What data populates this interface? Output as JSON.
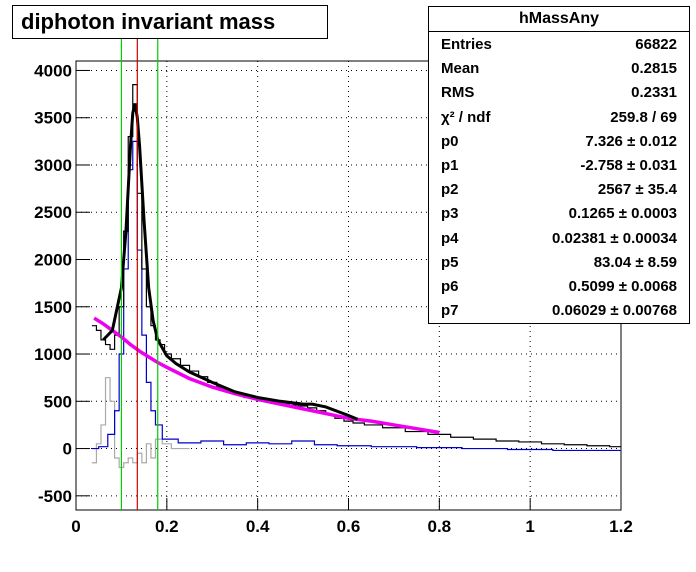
{
  "title": "diphoton invariant mass",
  "stats": {
    "name": "hMassAny",
    "rows": [
      {
        "label": "Entries",
        "value": "66822"
      },
      {
        "label": "Mean",
        "value": "0.2815"
      },
      {
        "label": "RMS",
        "value": "0.2331"
      },
      {
        "label": "χ² / ndf",
        "value": "259.8 / 69"
      },
      {
        "label": "p0",
        "value": "7.326 ± 0.012"
      },
      {
        "label": "p1",
        "value": "-2.758 ± 0.031"
      },
      {
        "label": "p2",
        "value": "2567 ± 35.4"
      },
      {
        "label": "p3",
        "value": "0.1265 ± 0.0003"
      },
      {
        "label": "p4",
        "value": "0.02381 ± 0.00034"
      },
      {
        "label": "p5",
        "value": "83.04 ± 8.59"
      },
      {
        "label": "p6",
        "value": "0.5099 ± 0.0068"
      },
      {
        "label": "p7",
        "value": "0.06029 ± 0.00768"
      }
    ]
  },
  "chart_data": {
    "type": "line",
    "title": "diphoton invariant mass",
    "xlim": [
      0,
      1.2
    ],
    "ylim": [
      -650,
      4100
    ],
    "xticks": [
      "0",
      "0.2",
      "0.4",
      "0.6",
      "0.8",
      "1",
      "1.2"
    ],
    "yticks": [
      "-500",
      "0",
      "500",
      "1000",
      "1500",
      "2000",
      "2500",
      "3000",
      "3500",
      "4000"
    ],
    "grid": true,
    "colors": {
      "histogram": "#000000",
      "signal": "#0000cc",
      "background_sub": "#aaaaaa",
      "total_fit": "#000000",
      "background_fit": "#ee00ee",
      "peak_line": "#cc0000",
      "window_lines": "#00cc00"
    },
    "vertical_lines": [
      0.1,
      0.135,
      0.18
    ],
    "series": [
      {
        "role": "total histogram",
        "x": [
          0.04,
          0.05,
          0.06,
          0.07,
          0.08,
          0.09,
          0.1,
          0.11,
          0.12,
          0.13,
          0.14,
          0.15,
          0.16,
          0.17,
          0.18,
          0.19,
          0.2,
          0.22,
          0.24,
          0.26,
          0.28,
          0.3,
          0.32,
          0.34,
          0.36,
          0.38,
          0.4,
          0.42,
          0.44,
          0.46,
          0.48,
          0.5,
          0.52,
          0.54,
          0.56,
          0.58,
          0.6,
          0.62,
          0.65,
          0.7,
          0.75,
          0.8,
          0.85,
          0.9,
          0.95,
          1.0,
          1.05,
          1.1,
          1.15,
          1.2
        ],
        "y": [
          1300,
          1250,
          1150,
          1100,
          1050,
          1200,
          1500,
          2300,
          3300,
          3850,
          2700,
          1900,
          1500,
          1300,
          1150,
          1100,
          1000,
          950,
          880,
          820,
          760,
          700,
          650,
          600,
          570,
          540,
          520,
          500,
          480,
          470,
          460,
          450,
          430,
          400,
          360,
          320,
          290,
          270,
          250,
          220,
          180,
          150,
          120,
          100,
          80,
          70,
          50,
          40,
          30,
          20
        ]
      },
      {
        "role": "signal histogram",
        "x": [
          0.04,
          0.06,
          0.08,
          0.09,
          0.1,
          0.11,
          0.12,
          0.13,
          0.14,
          0.15,
          0.16,
          0.17,
          0.18,
          0.2,
          0.25,
          0.3,
          0.35,
          0.4,
          0.45,
          0.5,
          0.55,
          0.6,
          0.7,
          0.8,
          0.9,
          1.0,
          1.1,
          1.2
        ],
        "y": [
          0,
          20,
          150,
          400,
          1000,
          1900,
          2950,
          3250,
          2100,
          1200,
          700,
          400,
          250,
          100,
          60,
          80,
          40,
          60,
          50,
          80,
          40,
          30,
          20,
          10,
          0,
          -10,
          -20,
          -20
        ]
      },
      {
        "role": "background-subtracted residual",
        "x": [
          0.04,
          0.05,
          0.06,
          0.07,
          0.08,
          0.09,
          0.1,
          0.11,
          0.12,
          0.13,
          0.14,
          0.15,
          0.16,
          0.17,
          0.18,
          0.2,
          0.22,
          0.25
        ],
        "y": [
          -150,
          50,
          250,
          750,
          500,
          -100,
          -200,
          -150,
          -100,
          -150,
          -50,
          -150,
          50,
          -100,
          100,
          50,
          0,
          0
        ]
      },
      {
        "role": "total fit",
        "x": [
          0.06,
          0.08,
          0.1,
          0.11,
          0.12,
          0.125,
          0.13,
          0.135,
          0.14,
          0.15,
          0.16,
          0.17,
          0.18,
          0.2,
          0.22,
          0.25,
          0.3,
          0.35,
          0.4,
          0.45,
          0.5,
          0.52,
          0.55,
          0.6,
          0.62
        ],
        "y": [
          1150,
          1250,
          1700,
          2300,
          3200,
          3550,
          3650,
          3500,
          3200,
          2400,
          1700,
          1350,
          1150,
          980,
          900,
          810,
          700,
          600,
          540,
          500,
          470,
          470,
          440,
          350,
          310
        ]
      },
      {
        "role": "background fit",
        "x": [
          0.04,
          0.06,
          0.08,
          0.1,
          0.12,
          0.14,
          0.16,
          0.18,
          0.2,
          0.25,
          0.3,
          0.35,
          0.4,
          0.45,
          0.5,
          0.55,
          0.6,
          0.65,
          0.7,
          0.75,
          0.8
        ],
        "y": [
          1380,
          1320,
          1250,
          1180,
          1100,
          1030,
          970,
          910,
          860,
          740,
          650,
          580,
          520,
          470,
          420,
          370,
          320,
          290,
          250,
          210,
          170
        ]
      }
    ]
  }
}
